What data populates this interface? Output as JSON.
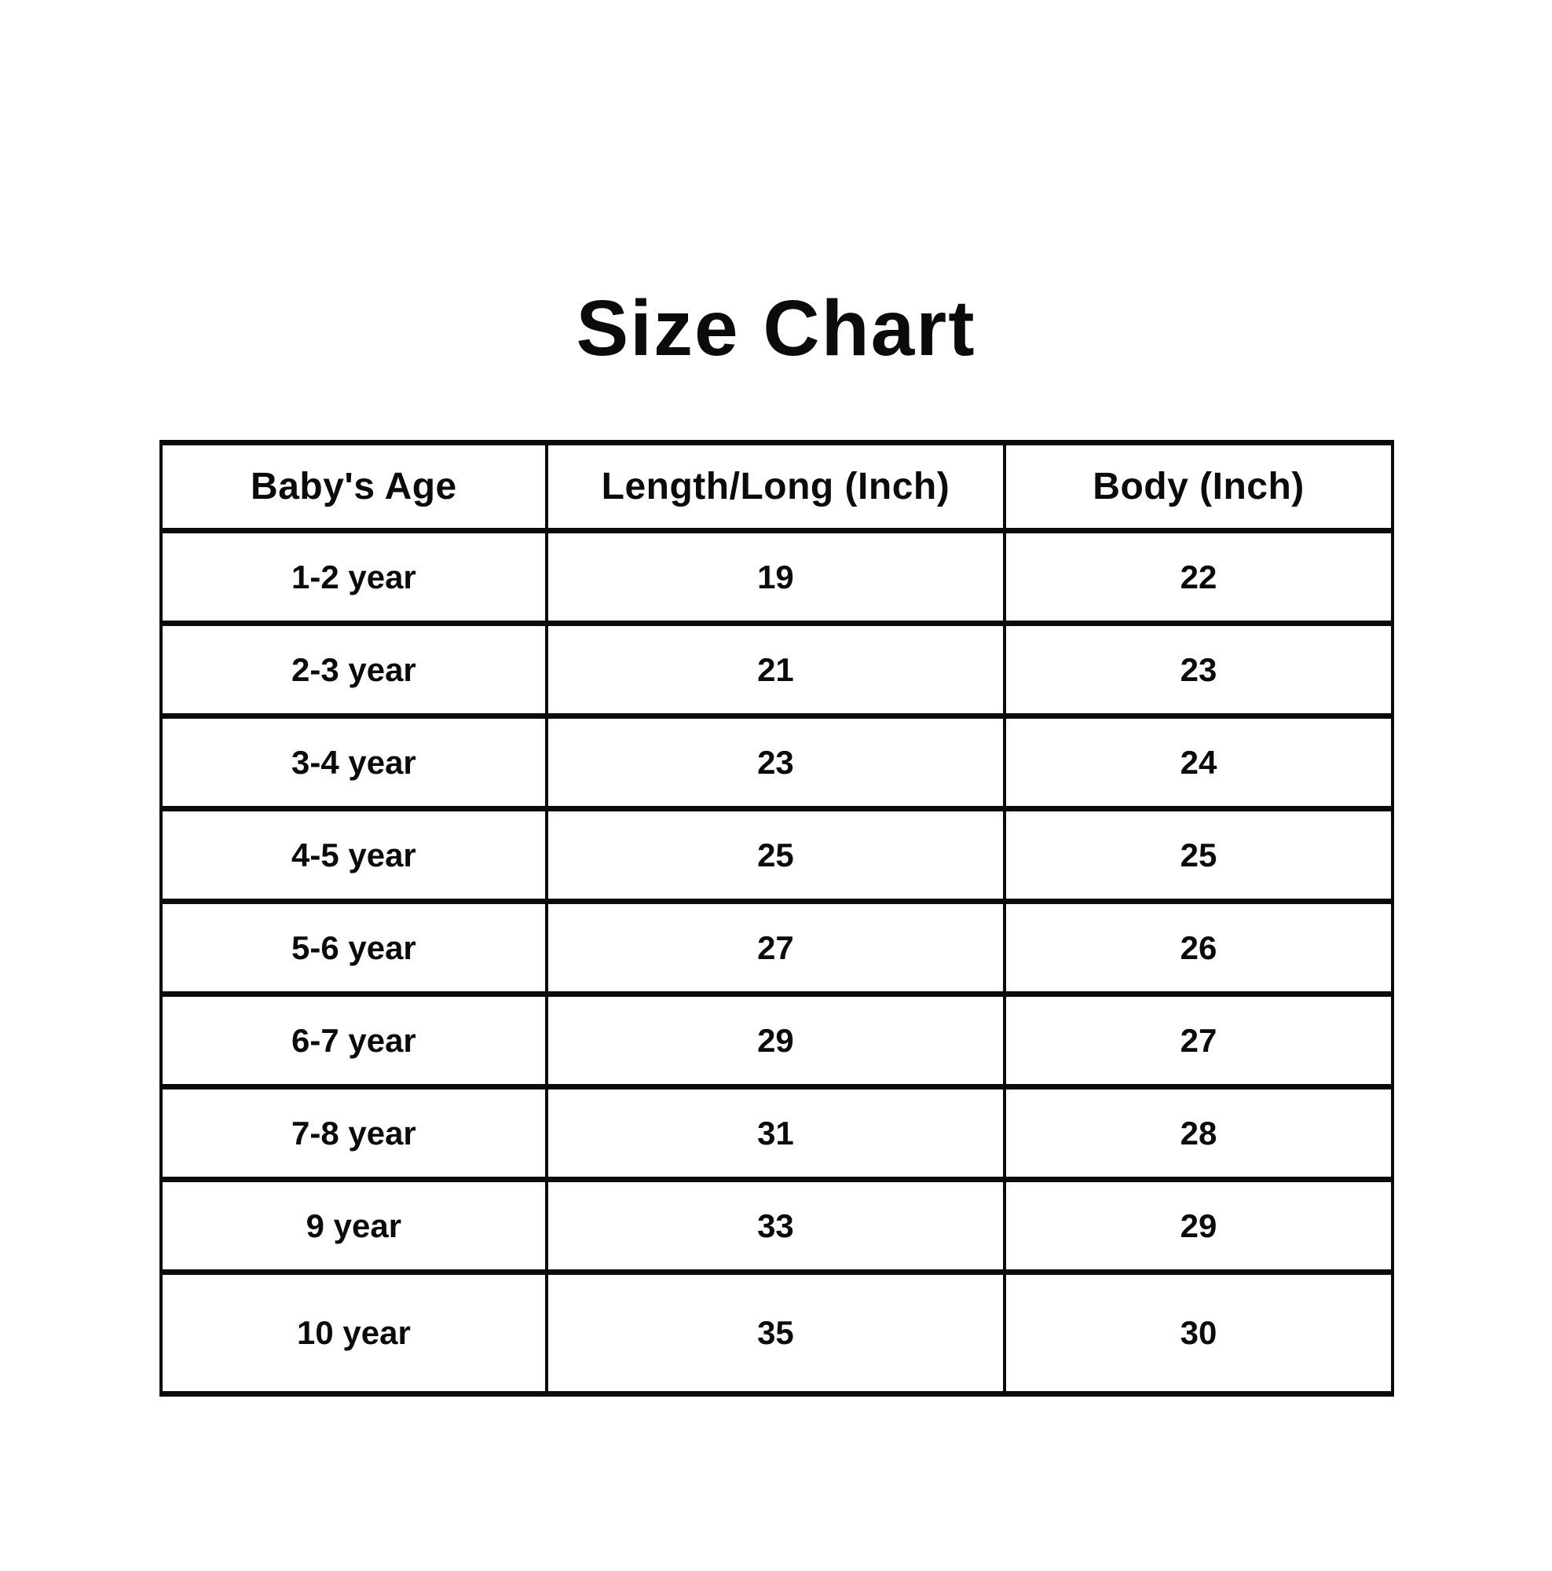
{
  "page": {
    "background_color": "#ffffff",
    "text_color": "#0b0b0b",
    "border_color": "#0b0b0b"
  },
  "title": "Size Chart",
  "chart_data": {
    "type": "table",
    "title": "Size Chart",
    "columns": [
      "Baby's Age",
      "Length/Long (Inch)",
      "Body (Inch)"
    ],
    "rows": [
      [
        "1-2 year",
        19,
        22
      ],
      [
        "2-3 year",
        21,
        23
      ],
      [
        "3-4 year",
        23,
        24
      ],
      [
        "4-5 year",
        25,
        25
      ],
      [
        "5-6 year",
        27,
        26
      ],
      [
        "6-7 year",
        29,
        27
      ],
      [
        "7-8 year",
        31,
        28
      ],
      [
        "9 year",
        33,
        29
      ],
      [
        "10 year",
        35,
        30
      ]
    ]
  }
}
